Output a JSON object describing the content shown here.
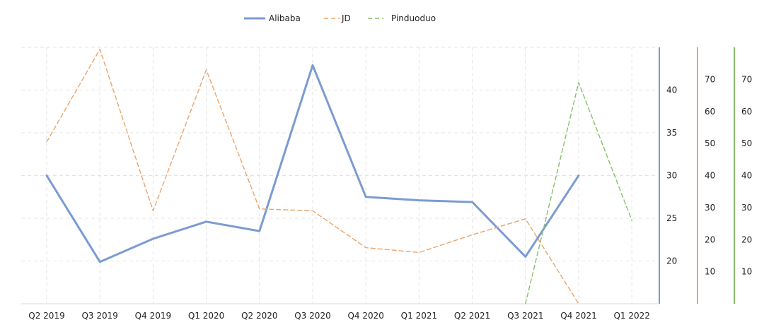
{
  "chart_data": {
    "type": "line",
    "categories": [
      "Q2 2019",
      "Q3 2019",
      "Q4 2019",
      "Q1 2020",
      "Q2 2020",
      "Q3 2020",
      "Q4 2020",
      "Q1 2021",
      "Q2 2021",
      "Q3 2021",
      "Q4 2021",
      "Q1 2022"
    ],
    "series": [
      {
        "name": "Alibaba",
        "axis": "left-of-three",
        "color": "#7b9bd2",
        "line_style": "solid",
        "values": [
          30.0,
          19.9,
          22.6,
          24.6,
          23.5,
          42.9,
          27.5,
          27.1,
          26.9,
          20.5,
          30.0,
          null
        ]
      },
      {
        "name": "JD",
        "axis": "middle",
        "color": "#e9a56c",
        "line_style": "dashed",
        "values": [
          50.5,
          79.4,
          29.0,
          73.0,
          29.6,
          29.0,
          17.5,
          16.0,
          21.5,
          26.5,
          0.0,
          null
        ]
      },
      {
        "name": "Pinduoduo",
        "axis": "right",
        "color": "#86c06a",
        "line_style": "dashed",
        "values": [
          null,
          null,
          null,
          null,
          null,
          null,
          null,
          null,
          null,
          0.0,
          69.0,
          26.0
        ]
      }
    ],
    "axes": [
      {
        "series": "Alibaba",
        "color": "#7b9bd2",
        "ylim": [
          15,
          45
        ],
        "ticks": [
          "20",
          "25",
          "30",
          "35",
          "40"
        ],
        "tick_values": [
          20,
          25,
          30,
          35,
          40
        ]
      },
      {
        "series": "JD",
        "color": "#e9a56c",
        "ylim": [
          0,
          80
        ],
        "ticks": [
          "10",
          "20",
          "30",
          "40",
          "50",
          "60",
          "70"
        ],
        "tick_values": [
          10,
          20,
          30,
          40,
          50,
          60,
          70
        ]
      },
      {
        "series": "Pinduoduo",
        "color": "#86c06a",
        "ylim": [
          0,
          80
        ],
        "ticks": [
          "10",
          "20",
          "30",
          "40",
          "50",
          "60",
          "70"
        ],
        "tick_values": [
          10,
          20,
          30,
          40,
          50,
          60,
          70
        ]
      }
    ],
    "legend": {
      "placement": "top-center",
      "entries": [
        "Alibaba",
        "JD",
        "Pinduoduo"
      ]
    },
    "grid": true,
    "title": "",
    "xlabel": "",
    "ylabel": ""
  }
}
